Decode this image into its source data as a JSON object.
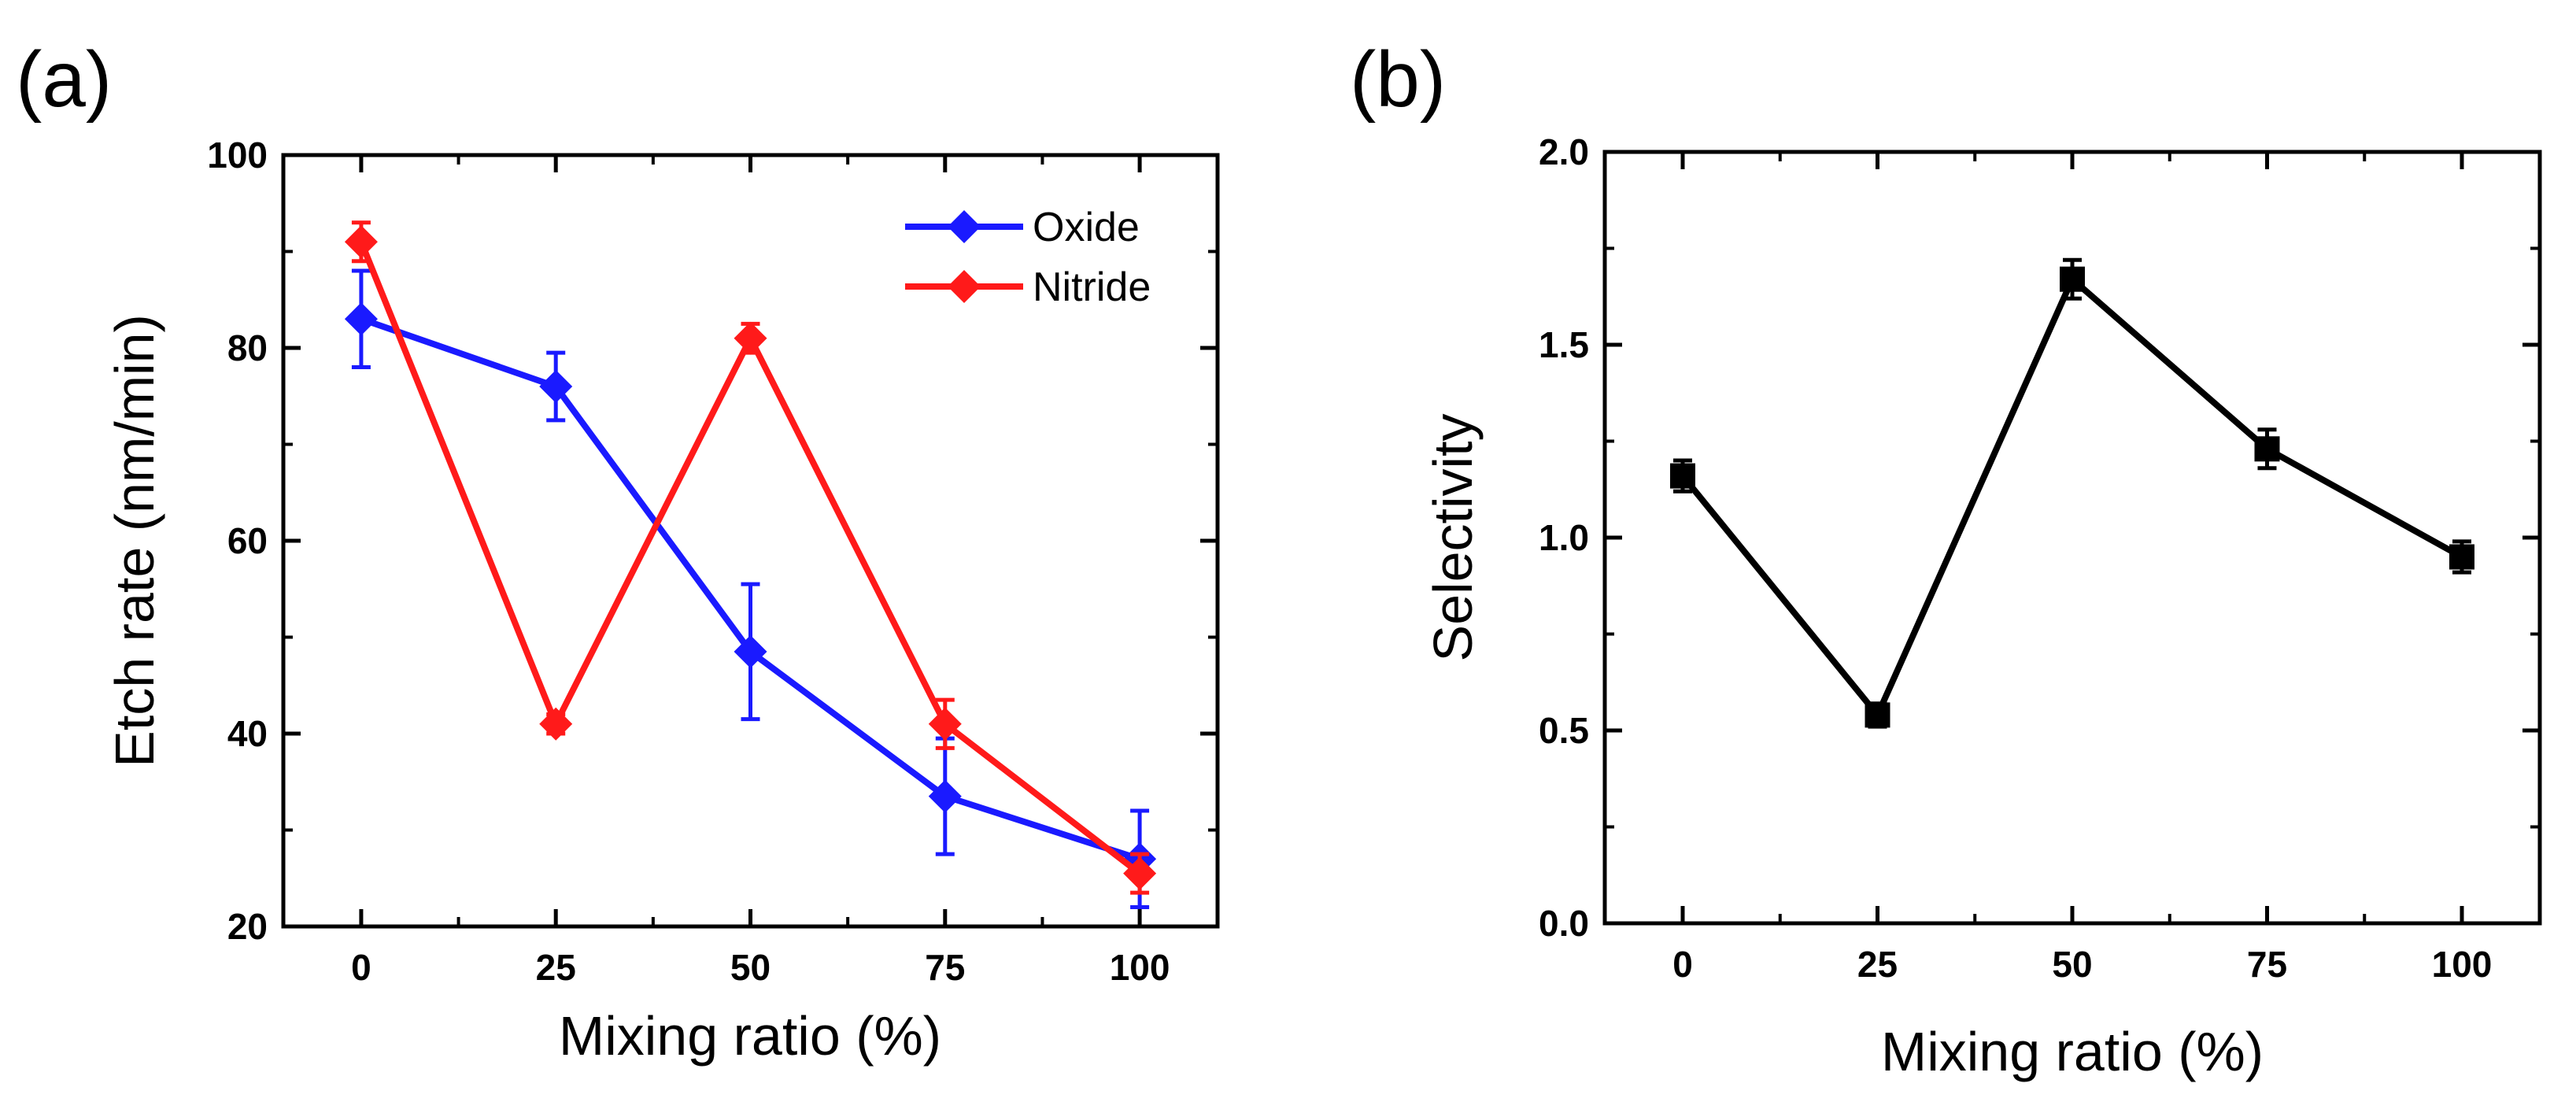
{
  "chart_data": [
    {
      "panel": "(a)",
      "type": "line",
      "xlabel": "Mixing ratio (%)",
      "ylabel": "Etch rate (nm/min)",
      "xlim": [
        -10,
        110
      ],
      "ylim": [
        20,
        100
      ],
      "xticks": [
        0,
        25,
        50,
        75,
        100
      ],
      "yticks": [
        20,
        40,
        60,
        80,
        100
      ],
      "x": [
        0,
        25,
        50,
        75,
        100
      ],
      "series": [
        {
          "name": "Oxide",
          "color": "#1a1aff",
          "marker": "diamond",
          "values": [
            83,
            76,
            48.5,
            33.5,
            27
          ],
          "errors": [
            5,
            3.5,
            7,
            6,
            5
          ]
        },
        {
          "name": "Nitride",
          "color": "#ff1a1a",
          "marker": "diamond",
          "values": [
            91,
            41,
            81,
            41,
            25.5
          ],
          "errors": [
            2,
            1,
            1.5,
            2.5,
            2
          ]
        }
      ],
      "legend": "top-right"
    },
    {
      "panel": "(b)",
      "type": "line",
      "xlabel": "Mixing ratio (%)",
      "ylabel": "Selectivity",
      "xlim": [
        -10,
        110
      ],
      "ylim": [
        0.0,
        2.0
      ],
      "xticks": [
        0,
        25,
        50,
        75,
        100
      ],
      "yticks": [
        0.0,
        0.5,
        1.0,
        1.5,
        2.0
      ],
      "ytick_labels": [
        "0.0",
        "0.5",
        "1.0",
        "1.5",
        "2.0"
      ],
      "x": [
        0,
        25,
        50,
        75,
        100
      ],
      "series": [
        {
          "name": "Selectivity",
          "color": "#000000",
          "marker": "square",
          "values": [
            1.16,
            0.54,
            1.67,
            1.23,
            0.95
          ],
          "errors": [
            0.04,
            0.03,
            0.05,
            0.05,
            0.04
          ]
        }
      ]
    }
  ]
}
